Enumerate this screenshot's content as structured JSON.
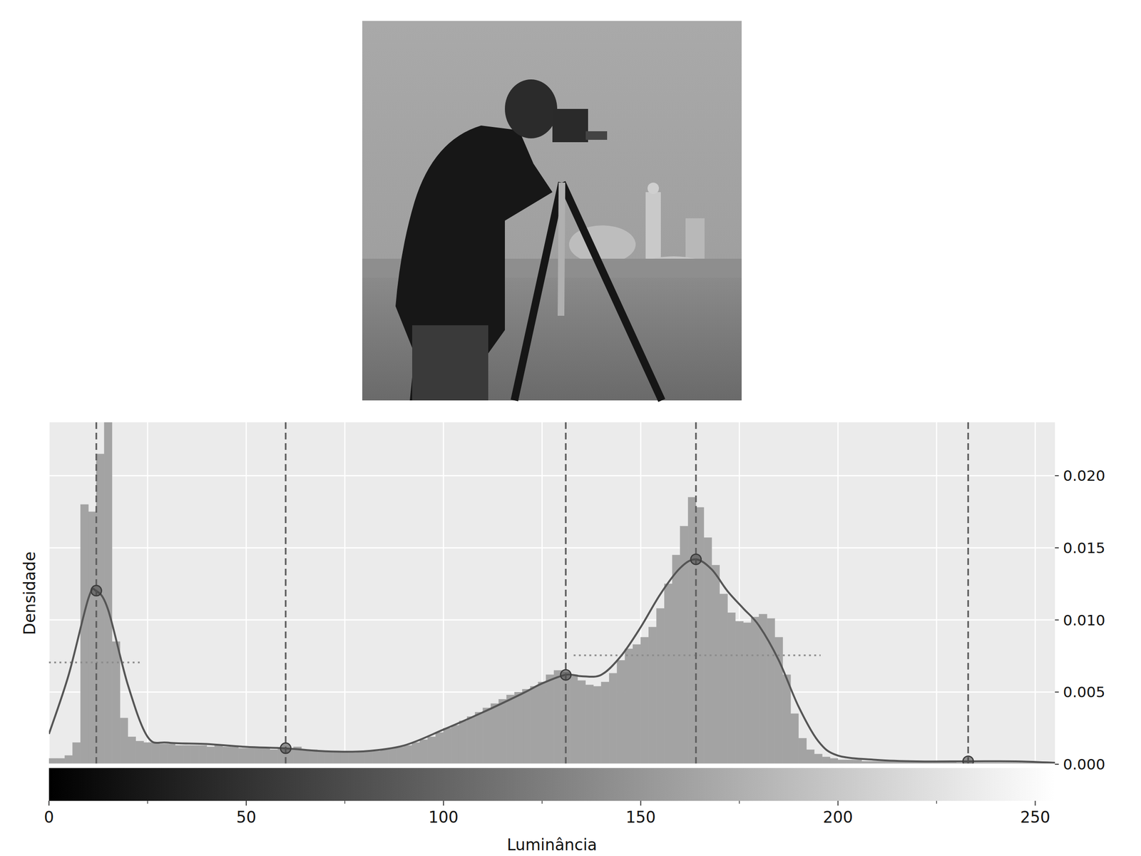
{
  "chart_data": {
    "type": "histogram",
    "x_label": "Luminância",
    "y_label": "Densidade",
    "color": "#a3a3a3",
    "bins": [
      0,
      2,
      4,
      6,
      8,
      10,
      12,
      14,
      16,
      18,
      20,
      22,
      24,
      26,
      28,
      30,
      32,
      34,
      36,
      38,
      40,
      42,
      44,
      46,
      48,
      50,
      52,
      54,
      56,
      58,
      60,
      62,
      64,
      66,
      68,
      70,
      72,
      74,
      76,
      78,
      80,
      82,
      84,
      86,
      88,
      90,
      92,
      94,
      96,
      98,
      100,
      102,
      104,
      106,
      108,
      110,
      112,
      114,
      116,
      118,
      120,
      122,
      124,
      126,
      128,
      130,
      132,
      134,
      136,
      138,
      140,
      142,
      144,
      146,
      148,
      150,
      152,
      154,
      156,
      158,
      160,
      162,
      164,
      166,
      168,
      170,
      172,
      174,
      176,
      178,
      180,
      182,
      184,
      186,
      188,
      190,
      192,
      194,
      196,
      198,
      200,
      202,
      204,
      206,
      208,
      210,
      212,
      214,
      216,
      218,
      220,
      222,
      224,
      226,
      228,
      230,
      232,
      234,
      236,
      238,
      240,
      242,
      244,
      246,
      248,
      250,
      252,
      254,
      256
    ],
    "counts": [
      0.0004,
      0.0004,
      0.0006,
      0.0015,
      0.018,
      0.0175,
      0.0215,
      0.0245,
      0.0085,
      0.0032,
      0.0019,
      0.0016,
      0.0015,
      0.0015,
      0.0014,
      0.0014,
      0.0013,
      0.0013,
      0.0013,
      0.0013,
      0.0012,
      0.0013,
      0.0012,
      0.0012,
      0.0011,
      0.0011,
      0.0011,
      0.0011,
      0.001,
      0.0011,
      0.0011,
      0.0012,
      0.001,
      0.001,
      0.0009,
      0.0009,
      0.0009,
      0.0009,
      0.0008,
      0.0009,
      0.0009,
      0.0009,
      0.001,
      0.0011,
      0.0012,
      0.0013,
      0.0015,
      0.0017,
      0.0019,
      0.0022,
      0.0025,
      0.0027,
      0.003,
      0.0033,
      0.0036,
      0.0039,
      0.0042,
      0.0045,
      0.0048,
      0.005,
      0.0052,
      0.0054,
      0.0057,
      0.0062,
      0.0065,
      0.0064,
      0.0062,
      0.0058,
      0.0055,
      0.0054,
      0.0057,
      0.0063,
      0.0072,
      0.008,
      0.0083,
      0.0088,
      0.0095,
      0.0108,
      0.0125,
      0.0145,
      0.0165,
      0.0185,
      0.0178,
      0.0157,
      0.0138,
      0.0118,
      0.0105,
      0.0099,
      0.0098,
      0.0102,
      0.0104,
      0.0101,
      0.0088,
      0.0062,
      0.0035,
      0.0018,
      0.001,
      0.0007,
      0.0005,
      0.0004,
      0.0003,
      0.0003,
      0.0003,
      0.0002,
      0.0002,
      0.0002,
      0.0002,
      0.0002,
      0.0002,
      0.0002,
      0.0002,
      0.0002,
      0.0002,
      0.0002,
      0.0002,
      0.0001,
      0.0001,
      0.0001,
      0.0001,
      0.0001,
      0.0001,
      0.0001,
      0.0001,
      0.0001,
      0.0001,
      0.0001,
      0.0001,
      0.0001
    ],
    "kde": {
      "color": "#555555",
      "x": [
        0,
        5,
        10,
        12,
        15,
        20,
        25,
        30,
        40,
        50,
        60,
        70,
        80,
        90,
        100,
        110,
        120,
        125,
        131,
        135,
        140,
        145,
        150,
        155,
        160,
        164,
        168,
        172,
        176,
        180,
        185,
        190,
        195,
        200,
        210,
        220,
        233,
        245,
        255
      ],
      "values": [
        0.0021,
        0.0062,
        0.0115,
        0.012,
        0.0107,
        0.0055,
        0.0019,
        0.0015,
        0.0014,
        0.0012,
        0.0011,
        0.0009,
        0.0009,
        0.0013,
        0.0024,
        0.0036,
        0.0049,
        0.0056,
        0.0062,
        0.0061,
        0.0062,
        0.0075,
        0.0095,
        0.0118,
        0.0136,
        0.0142,
        0.0135,
        0.012,
        0.0108,
        0.0096,
        0.0072,
        0.004,
        0.0016,
        0.0006,
        0.0003,
        0.0002,
        0.0002,
        0.0002,
        0.0001
      ]
    },
    "peaks": {
      "x": [
        12,
        60,
        131,
        164,
        233
      ],
      "values": [
        0.01203,
        0.00111,
        0.00619,
        0.0142,
        0.0002
      ]
    },
    "reference_lines": [
      {
        "x": [
          0,
          23
        ],
        "value": 0.00705
      },
      {
        "x": [
          133,
          195.6
        ],
        "value": 0.00755
      }
    ],
    "xlim": [
      0,
      255
    ],
    "ylim": [
      0,
      0.0237
    ],
    "xticks": [
      0,
      50,
      100,
      150,
      200,
      250
    ],
    "x_minor_ticks": [
      25,
      75,
      125,
      175,
      225
    ],
    "yticks": [
      {
        "value": 0,
        "label": "0.000"
      },
      {
        "value": 0.005,
        "label": "0.005"
      },
      {
        "value": 0.01,
        "label": "0.010"
      },
      {
        "value": 0.015,
        "label": "0.015"
      },
      {
        "value": 0.02,
        "label": "0.020"
      }
    ],
    "grid": true
  }
}
